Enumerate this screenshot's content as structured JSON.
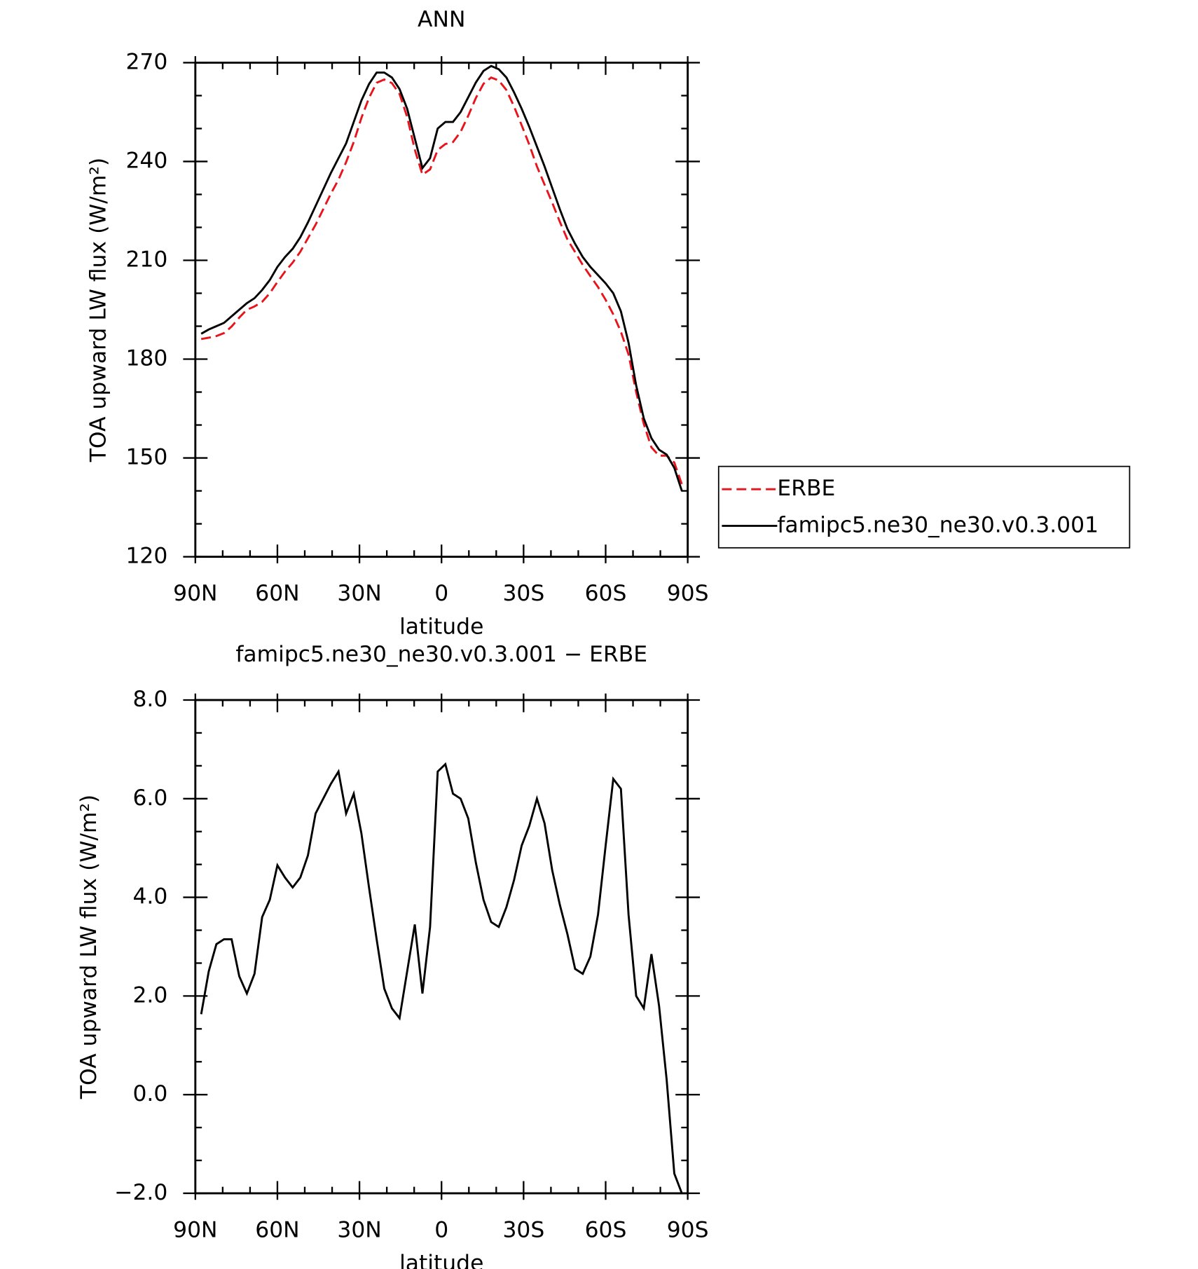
{
  "chart_data": [
    {
      "type": "line",
      "title": "ANN",
      "xlabel": "latitude",
      "ylabel": "TOA upward LW flux (W/m²)",
      "x": [
        87.86,
        85.1,
        82.31,
        79.53,
        76.74,
        73.95,
        71.16,
        68.37,
        65.58,
        62.79,
        60.0,
        57.21,
        54.42,
        51.63,
        48.84,
        46.04,
        43.25,
        40.46,
        37.67,
        34.88,
        32.09,
        29.3,
        26.51,
        23.72,
        20.93,
        18.14,
        15.35,
        12.56,
        9.77,
        6.98,
        4.19,
        1.4,
        -1.4,
        -4.19,
        -6.98,
        -9.77,
        -12.56,
        -15.35,
        -18.14,
        -20.93,
        -23.72,
        -26.51,
        -29.3,
        -32.09,
        -34.88,
        -37.67,
        -40.46,
        -43.25,
        -46.04,
        -48.84,
        -51.63,
        -54.42,
        -57.21,
        -60.0,
        -62.79,
        -65.58,
        -68.37,
        -71.16,
        -73.95,
        -76.74,
        -79.53,
        -82.31,
        -85.1,
        -87.86
      ],
      "series": [
        {
          "name": "ERBE",
          "color": "#e8141c",
          "dashed": true,
          "values": [
            186.1,
            186.5,
            187,
            187.9,
            189.9,
            192.6,
            195,
            196,
            197.4,
            200,
            203.4,
            206.6,
            209.3,
            212.6,
            216.7,
            220.8,
            225.5,
            230.2,
            234.5,
            239.8,
            245.9,
            253.2,
            259.3,
            263.9,
            264.9,
            263.8,
            260.5,
            253.5,
            243.6,
            236,
            237.6,
            243.5,
            245.3,
            245.9,
            249,
            253.9,
            259.3,
            263.6,
            265.5,
            264.6,
            261.7,
            256.7,
            251,
            245.1,
            238.5,
            233,
            227.5,
            221.7,
            216.3,
            212.5,
            208.6,
            205.2,
            201.9,
            198,
            193.6,
            188.3,
            181.4,
            170,
            160.3,
            153.2,
            150.7,
            150.7,
            148.6,
            142
          ]
        },
        {
          "name": "famipc5.ne30_ne30.v0.3.001",
          "color": "#000000",
          "dashed": false,
          "values": [
            187.7,
            189,
            190,
            191,
            193,
            195,
            197,
            198.5,
            201,
            204,
            208,
            211,
            213.5,
            217,
            221.5,
            226.5,
            231.5,
            236.5,
            241,
            245.5,
            252,
            258.5,
            263.5,
            267,
            267,
            265.5,
            262,
            256,
            247,
            238,
            241,
            250,
            252,
            252,
            255,
            259.5,
            264,
            267.5,
            269,
            268,
            265.5,
            261,
            256,
            250.5,
            244.5,
            238.5,
            232,
            225.5,
            219.5,
            215,
            211,
            208,
            205.5,
            203,
            200,
            194.5,
            185,
            172,
            162,
            156,
            152.5,
            151,
            147,
            140
          ]
        }
      ],
      "xlim": [
        90,
        -90
      ],
      "xticks": [
        {
          "value": 90,
          "label": "90N"
        },
        {
          "value": 60,
          "label": "60N"
        },
        {
          "value": 30,
          "label": "30N"
        },
        0,
        {
          "value": -30,
          "label": "30S"
        },
        {
          "value": -60,
          "label": "60S"
        },
        {
          "value": -90,
          "label": "90S"
        }
      ],
      "ylim": [
        120,
        270
      ],
      "yticks": [
        120,
        150,
        180,
        210,
        240,
        270
      ],
      "legend": "right"
    },
    {
      "type": "line",
      "title": "famipc5.ne30_ne30.v0.3.001 − ERBE",
      "xlabel": "latitude",
      "ylabel": "TOA upward LW flux (W/m²)",
      "x": [
        87.86,
        85.1,
        82.31,
        79.53,
        76.74,
        73.95,
        71.16,
        68.37,
        65.58,
        62.79,
        60.0,
        57.21,
        54.42,
        51.63,
        48.84,
        46.04,
        43.25,
        40.46,
        37.67,
        34.88,
        32.09,
        29.3,
        26.51,
        23.72,
        20.93,
        18.14,
        15.35,
        12.56,
        9.77,
        6.98,
        4.19,
        1.4,
        -1.4,
        -4.19,
        -6.98,
        -9.77,
        -12.56,
        -15.35,
        -18.14,
        -20.93,
        -23.72,
        -26.51,
        -29.3,
        -32.09,
        -34.88,
        -37.67,
        -40.46,
        -43.25,
        -46.04,
        -48.84,
        -51.63,
        -54.42,
        -57.21,
        -60.0,
        -62.79,
        -65.58,
        -68.37,
        -71.16,
        -73.95,
        -76.74,
        -79.53,
        -82.31,
        -85.1,
        -87.86
      ],
      "color": "#000000",
      "values": [
        1.63,
        2.5,
        3.05,
        3.15,
        3.15,
        2.4,
        2.05,
        2.45,
        3.6,
        3.95,
        4.65,
        4.4,
        4.2,
        4.4,
        4.85,
        5.7,
        6.0,
        6.3,
        6.55,
        5.7,
        6.1,
        5.3,
        4.2,
        3.15,
        2.15,
        1.75,
        1.55,
        2.5,
        3.45,
        2.05,
        3.4,
        6.55,
        6.7,
        6.1,
        6.0,
        5.6,
        4.7,
        3.95,
        3.5,
        3.4,
        3.8,
        4.35,
        5.05,
        5.45,
        6.0,
        5.5,
        4.55,
        3.85,
        3.25,
        2.55,
        2.45,
        2.8,
        3.65,
        5.05,
        6.4,
        6.2,
        3.65,
        2.0,
        1.75,
        2.85,
        1.8,
        0.3,
        -1.6,
        -2.0
      ],
      "xlim": [
        90,
        -90
      ],
      "xticks": [
        {
          "value": 90,
          "label": "90N"
        },
        {
          "value": 60,
          "label": "60N"
        },
        {
          "value": 30,
          "label": "30N"
        },
        0,
        {
          "value": -30,
          "label": "30S"
        },
        {
          "value": -60,
          "label": "60S"
        },
        {
          "value": -90,
          "label": "90S"
        }
      ],
      "ylim": [
        -2,
        8
      ],
      "yticks": [
        {
          "value": -2,
          "label": "−2.0"
        },
        {
          "value": 0,
          "label": "0.0"
        },
        {
          "value": 2,
          "label": "2.0"
        },
        {
          "value": 4,
          "label": "4.0"
        },
        {
          "value": 6,
          "label": "6.0"
        },
        {
          "value": 8,
          "label": "8.0"
        }
      ]
    }
  ]
}
